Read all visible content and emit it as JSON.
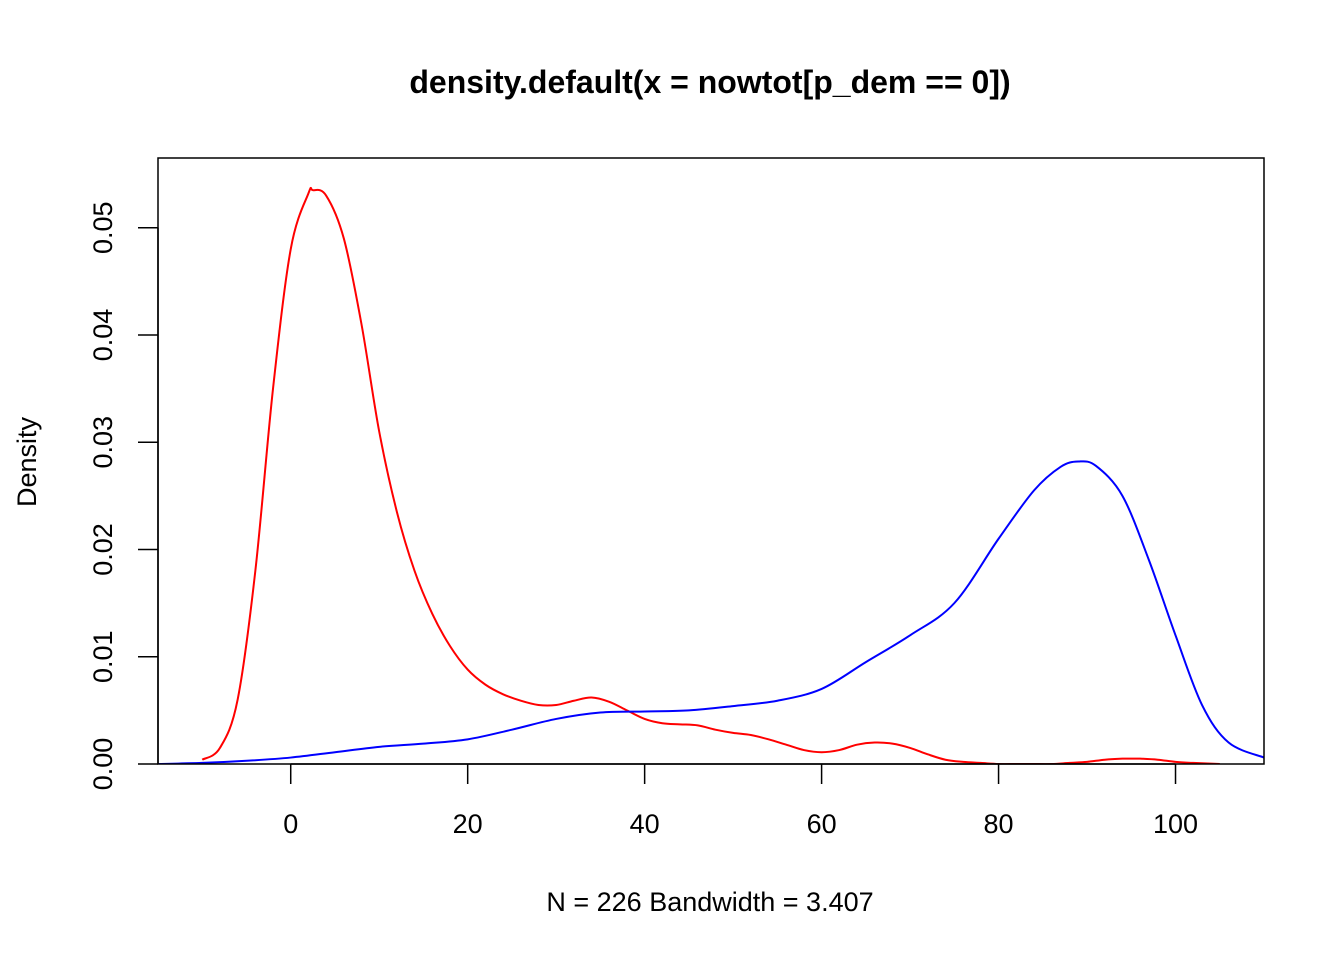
{
  "chart_data": {
    "type": "line",
    "title": "density.default(x = nowtot[p_dem == 0])",
    "subtitle": "N = 226   Bandwidth = 3.407",
    "xlabel": "",
    "ylabel": "Density",
    "xlim": [
      -15,
      110
    ],
    "ylim": [
      0,
      0.0565
    ],
    "x_ticks": [
      0,
      20,
      40,
      60,
      80,
      100
    ],
    "x_tick_labels": [
      "0",
      "20",
      "40",
      "60",
      "80",
      "100"
    ],
    "y_ticks": [
      0,
      0.01,
      0.02,
      0.03,
      0.04,
      0.05
    ],
    "y_tick_labels": [
      "0.00",
      "0.01",
      "0.02",
      "0.03",
      "0.04",
      "0.05"
    ],
    "grid": false,
    "baseline": 0,
    "series": [
      {
        "color": "#ff0000",
        "x": [
          -10,
          -8,
          -6,
          -4,
          -2,
          0,
          2,
          2.5,
          4,
          6,
          8,
          10,
          12,
          14,
          16,
          18,
          20,
          22,
          24,
          26,
          28,
          30,
          32,
          34,
          36,
          38,
          40,
          42,
          44,
          46,
          48,
          50,
          52,
          54,
          56,
          58,
          60,
          62,
          64,
          66,
          68,
          70,
          72,
          74,
          76,
          78,
          80,
          82,
          84,
          86,
          88,
          90,
          92,
          94,
          95,
          96,
          98,
          100,
          102,
          105
        ],
        "y": [
          0.0004,
          0.0015,
          0.006,
          0.018,
          0.035,
          0.048,
          0.0532,
          0.0535,
          0.053,
          0.049,
          0.041,
          0.031,
          0.0235,
          0.018,
          0.014,
          0.011,
          0.0088,
          0.0074,
          0.0065,
          0.0059,
          0.0055,
          0.0055,
          0.0059,
          0.0062,
          0.0058,
          0.005,
          0.0042,
          0.0038,
          0.0037,
          0.0036,
          0.0032,
          0.0029,
          0.0027,
          0.0023,
          0.0018,
          0.0013,
          0.0011,
          0.0013,
          0.0018,
          0.002,
          0.0019,
          0.0015,
          0.0009,
          0.0004,
          0.0002,
          0.0001,
          0.0,
          0.0,
          0.0,
          0.0,
          0.0001,
          0.0002,
          0.0004,
          0.0005,
          0.0005,
          0.0005,
          0.0004,
          0.0002,
          0.0001,
          0.0
        ]
      },
      {
        "color": "#0000ff",
        "x": [
          -15,
          -10,
          -5,
          0,
          5,
          10,
          15,
          20,
          25,
          30,
          35,
          40,
          45,
          50,
          55,
          60,
          65,
          70,
          75,
          80,
          84,
          87,
          89,
          91,
          94,
          97,
          100,
          103,
          106,
          110
        ],
        "y": [
          0.0,
          0.0001,
          0.0003,
          0.0006,
          0.0011,
          0.0016,
          0.0019,
          0.0023,
          0.0032,
          0.0042,
          0.0048,
          0.0049,
          0.005,
          0.0054,
          0.0059,
          0.007,
          0.0095,
          0.012,
          0.015,
          0.021,
          0.0255,
          0.0277,
          0.0282,
          0.0278,
          0.025,
          0.019,
          0.012,
          0.0055,
          0.002,
          0.0006
        ]
      }
    ]
  }
}
